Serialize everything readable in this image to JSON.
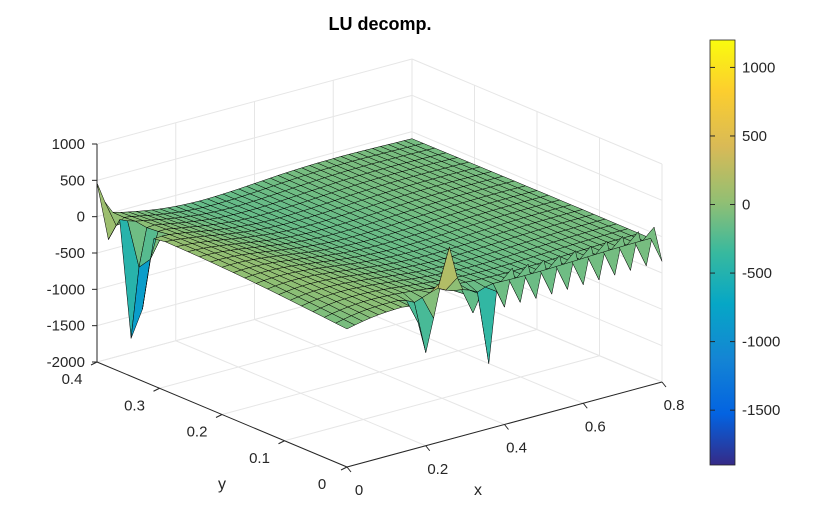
{
  "chart_data": {
    "type": "surface3d",
    "title": "LU decomp.",
    "xlabel": "x",
    "ylabel": "y",
    "zlabel": "",
    "xlim": [
      0,
      0.8
    ],
    "ylim": [
      0,
      0.4
    ],
    "zlim": [
      -2000,
      1000
    ],
    "xticks": [
      "0",
      "0.2",
      "0.4",
      "0.6",
      "0.8"
    ],
    "yticks": [
      "0",
      "0.1",
      "0.2",
      "0.3",
      "0.4"
    ],
    "zticks": [
      "-2000",
      "-1500",
      "-1000",
      "-500",
      "0",
      "500",
      "1000"
    ],
    "grid": true,
    "colormap": "parula",
    "clim": [
      -1900,
      1200
    ],
    "colorbar_ticks": [
      "1000",
      "500",
      "0",
      "-500",
      "-1000",
      "-1500"
    ],
    "surface": {
      "x_range": [
        0,
        0.8
      ],
      "y_range": [
        0,
        0.4
      ],
      "baseline_z": -100,
      "spikes": [
        {
          "x": 0.0,
          "y": 0.4,
          "z": 350
        },
        {
          "x": 0.0,
          "y": 0.38,
          "z": -450
        },
        {
          "x": 0.0,
          "y": 0.34,
          "z": -1900
        },
        {
          "x": 0.0,
          "y": 0.33,
          "z": -600
        },
        {
          "x": 0.0,
          "y": 0.36,
          "z": 50
        },
        {
          "x": 0.26,
          "y": 0.0,
          "z": 600
        },
        {
          "x": 0.2,
          "y": 0.0,
          "z": -800
        },
        {
          "x": 0.36,
          "y": 0.0,
          "z": -850
        }
      ],
      "edge_oscillation": {
        "edge": "y=0",
        "amplitude": 250
      }
    }
  }
}
